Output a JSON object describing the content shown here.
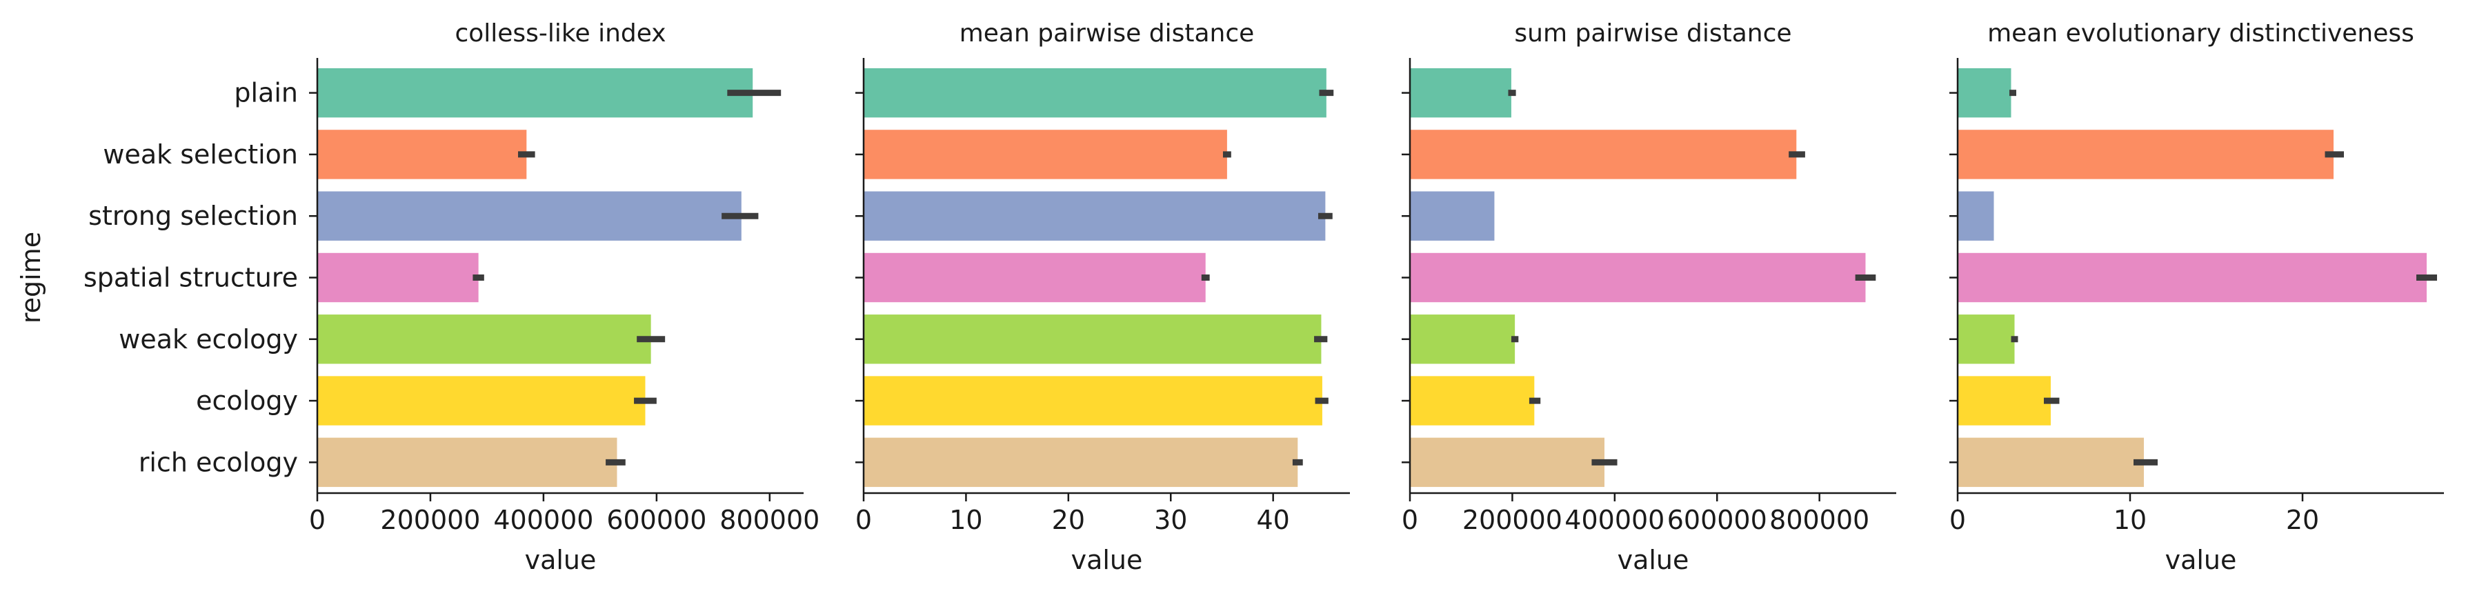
{
  "chart_data": {
    "type": "bar",
    "orientation": "horizontal",
    "ylabel": "regime",
    "xlabel": "value",
    "categories": [
      "plain",
      "weak selection",
      "strong selection",
      "spatial structure",
      "weak ecology",
      "ecology",
      "rich ecology"
    ],
    "colors": [
      "#66c2a5",
      "#fc8d62",
      "#8da0cb",
      "#e78ac3",
      "#a6d854",
      "#ffd92f",
      "#e5c494"
    ],
    "panels": [
      {
        "title": "colless-like index",
        "xlim": [
          0,
          860000
        ],
        "xticks": [
          0,
          200000,
          400000,
          600000,
          800000
        ],
        "xtick_labels": [
          "0",
          "200000",
          "400000",
          "600000",
          "800000"
        ],
        "values": [
          770000,
          370000,
          750000,
          285000,
          590000,
          580000,
          530000
        ],
        "ci_low": [
          725000,
          355000,
          715000,
          275000,
          565000,
          560000,
          510000
        ],
        "ci_high": [
          820000,
          385000,
          780000,
          295000,
          615000,
          600000,
          545000
        ]
      },
      {
        "title": "mean pairwise distance",
        "xlim": [
          0,
          47.5
        ],
        "xticks": [
          0,
          10,
          20,
          30,
          40
        ],
        "xtick_labels": [
          "0",
          "10",
          "20",
          "30",
          "40"
        ],
        "values": [
          45.2,
          35.5,
          45.1,
          33.4,
          44.7,
          44.8,
          42.4
        ],
        "ci_low": [
          44.5,
          35.1,
          44.4,
          33.0,
          44.0,
          44.1,
          41.9
        ],
        "ci_high": [
          45.9,
          35.9,
          45.8,
          33.8,
          45.3,
          45.4,
          42.9
        ]
      },
      {
        "title": "sum pairwise distance",
        "xlim": [
          0,
          950000
        ],
        "xticks": [
          0,
          200000,
          400000,
          600000,
          800000
        ],
        "xtick_labels": [
          "0",
          "200000",
          "400000",
          "600000",
          "800000"
        ],
        "values": [
          198000,
          755000,
          165000,
          890000,
          205000,
          243000,
          380000
        ],
        "ci_low": [
          192000,
          740000,
          165000,
          870000,
          198000,
          233000,
          355000
        ],
        "ci_high": [
          207000,
          772000,
          165000,
          910000,
          212000,
          255000,
          405000
        ]
      },
      {
        "title": "mean evolutionary distinctiveness",
        "xlim": [
          0,
          28.2
        ],
        "xticks": [
          0,
          10,
          20
        ],
        "xtick_labels": [
          "0",
          "10",
          "20"
        ],
        "values": [
          3.1,
          21.8,
          2.1,
          27.2,
          3.3,
          5.4,
          10.8
        ],
        "ci_low": [
          3.0,
          21.3,
          2.1,
          26.6,
          3.1,
          5.0,
          10.2
        ],
        "ci_high": [
          3.4,
          22.4,
          2.1,
          27.8,
          3.5,
          5.9,
          11.6
        ]
      }
    ]
  }
}
